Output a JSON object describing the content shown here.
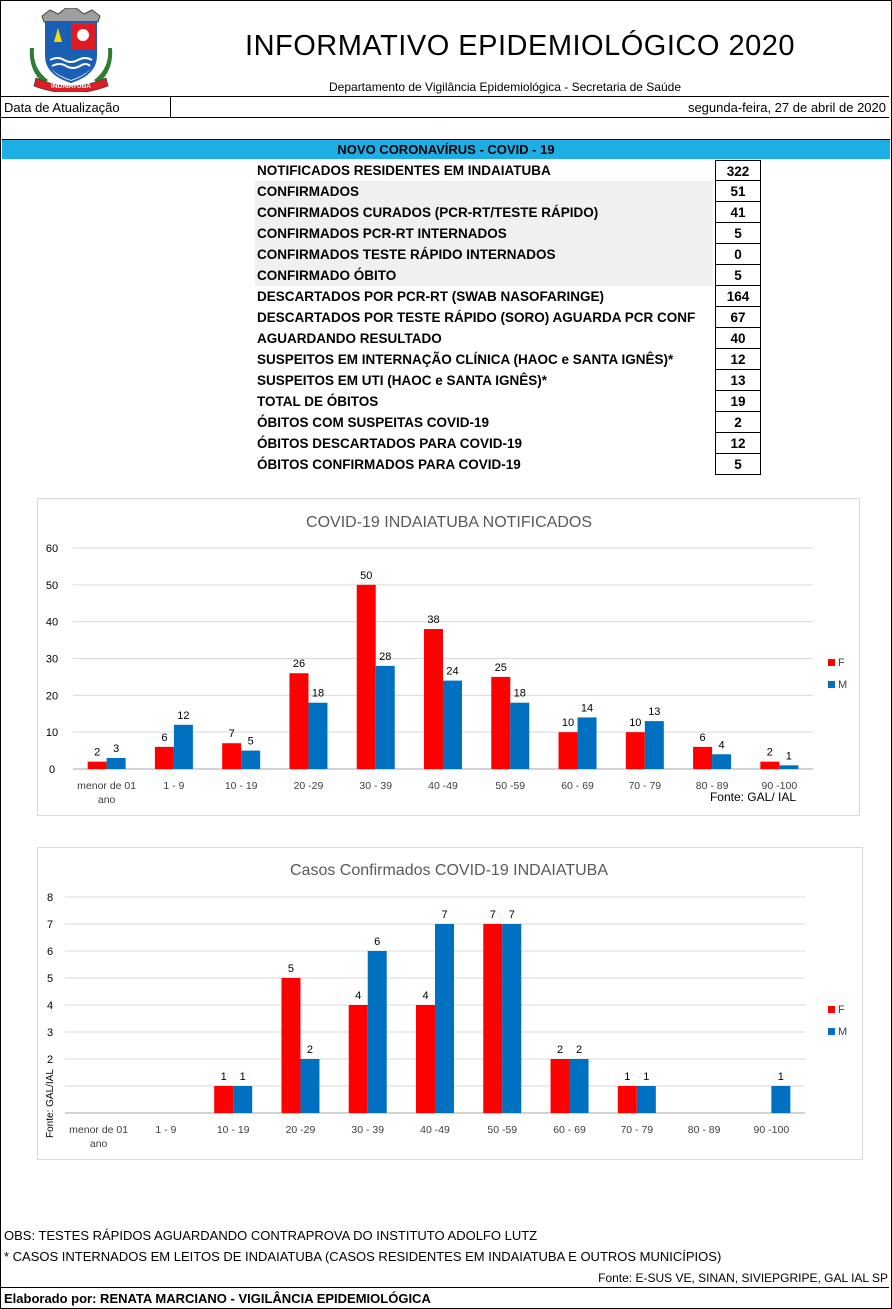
{
  "header": {
    "title": "INFORMATIVO EPIDEMIOLÓGICO 2020",
    "subtitle": "Departamento de Vigilância Epidemiológica - Secretaria de Saúde",
    "logo_text": "INDAIATUBA"
  },
  "update": {
    "label": "Data de Atualização",
    "value": "segunda-feira, 27 de abril de 2020"
  },
  "band_title": "NOVO CORONAVÍRUS - COVID - 19",
  "stats": [
    {
      "label": "NOTIFICADOS RESIDENTES EM INDAIATUBA",
      "value": "322",
      "shade": false
    },
    {
      "label": "CONFIRMADOS",
      "value": "51",
      "shade": true
    },
    {
      "label": "CONFIRMADOS CURADOS (PCR-RT/TESTE RÁPIDO)",
      "value": "41",
      "shade": true
    },
    {
      "label": "CONFIRMADOS PCR-RT INTERNADOS",
      "value": "5",
      "shade": true
    },
    {
      "label": "CONFIRMADOS TESTE RÁPIDO INTERNADOS",
      "value": "0",
      "shade": true
    },
    {
      "label": "CONFIRMADO ÓBITO",
      "value": "5",
      "shade": true
    },
    {
      "label": "DESCARTADOS POR PCR-RT (SWAB NASOFARINGE)",
      "value": "164",
      "shade": false
    },
    {
      "label": "DESCARTADOS POR TESTE RÁPIDO (SORO) AGUARDA PCR CONF",
      "value": "67",
      "shade": false
    },
    {
      "label": "AGUARDANDO RESULTADO",
      "value": "40",
      "shade": false
    },
    {
      "label": "SUSPEITOS EM INTERNAÇÃO CLÍNICA (HAOC e SANTA IGNÊS)*",
      "value": "12",
      "shade": false
    },
    {
      "label": "SUSPEITOS EM UTI (HAOC e SANTA IGNÊS)*",
      "value": "13",
      "shade": false
    },
    {
      "label": "TOTAL DE ÓBITOS",
      "value": "19",
      "shade": false
    },
    {
      "label": "ÓBITOS COM SUSPEITAS COVID-19",
      "value": "2",
      "shade": false
    },
    {
      "label": "ÓBITOS DESCARTADOS PARA COVID-19",
      "value": "12",
      "shade": false
    },
    {
      "label": "ÓBITOS CONFIRMADOS PARA COVID-19",
      "value": "5",
      "shade": false
    }
  ],
  "colors": {
    "F": "#ff0000",
    "M": "#0070c0",
    "band": "#1eaee6"
  },
  "chart_data": [
    {
      "type": "bar",
      "title": "COVID-19 INDAIATUBA NOTIFICADOS",
      "categories": [
        "menor de 01 ano",
        "1 - 9",
        "10 - 19",
        "20 -29",
        "30 - 39",
        "40 -49",
        "50 -59",
        "60 - 69",
        "70 - 79",
        "80 - 89",
        "90 -100"
      ],
      "series": [
        {
          "name": "F",
          "values": [
            2,
            6,
            7,
            26,
            50,
            38,
            25,
            10,
            10,
            6,
            2
          ]
        },
        {
          "name": "M",
          "values": [
            3,
            12,
            5,
            18,
            28,
            24,
            18,
            14,
            13,
            4,
            1
          ]
        }
      ],
      "yticks": [
        "0",
        "10",
        "20",
        "30",
        "40",
        "50",
        "60"
      ],
      "ylim": [
        0,
        60
      ],
      "grid": true,
      "legend": "right",
      "note": "Fonte: GAL/ IAL"
    },
    {
      "type": "bar",
      "title": "Casos Confirmados COVID-19 INDAIATUBA",
      "categories": [
        "menor de 01 ano",
        "1 - 9",
        "10 - 19",
        "20 -29",
        "30 - 39",
        "40 -49",
        "50 -59",
        "60 - 69",
        "70 - 79",
        "80 - 89",
        "90 -100"
      ],
      "series": [
        {
          "name": "F",
          "values": [
            0,
            0,
            1,
            5,
            4,
            4,
            7,
            2,
            1,
            0,
            0
          ]
        },
        {
          "name": "M",
          "values": [
            0,
            0,
            1,
            2,
            6,
            7,
            7,
            2,
            1,
            0,
            1
          ]
        }
      ],
      "yticks": [
        "2",
        "3",
        "4",
        "5",
        "6",
        "7",
        "8"
      ],
      "ylim": [
        0,
        8
      ],
      "grid": true,
      "legend": "right",
      "note": "Fonte: GAL/IAL"
    }
  ],
  "notes": {
    "obs1": "OBS: TESTES RÁPIDOS AGUARDANDO CONTRAPROVA DO INSTITUTO ADOLFO LUTZ",
    "obs2": "* CASOS INTERNADOS EM LEITOS DE INDAIATUBA (CASOS RESIDENTES EM INDAIATUBA E OUTROS MUNICÍPIOS)",
    "fonte": "Fonte: E-SUS VE, SINAN, SIVIEPGRIPE, GAL IAL SP",
    "elaborado": "Elaborado por: RENATA MARCIANO - VIGILÂNCIA EPIDEMIOLÓGICA"
  }
}
